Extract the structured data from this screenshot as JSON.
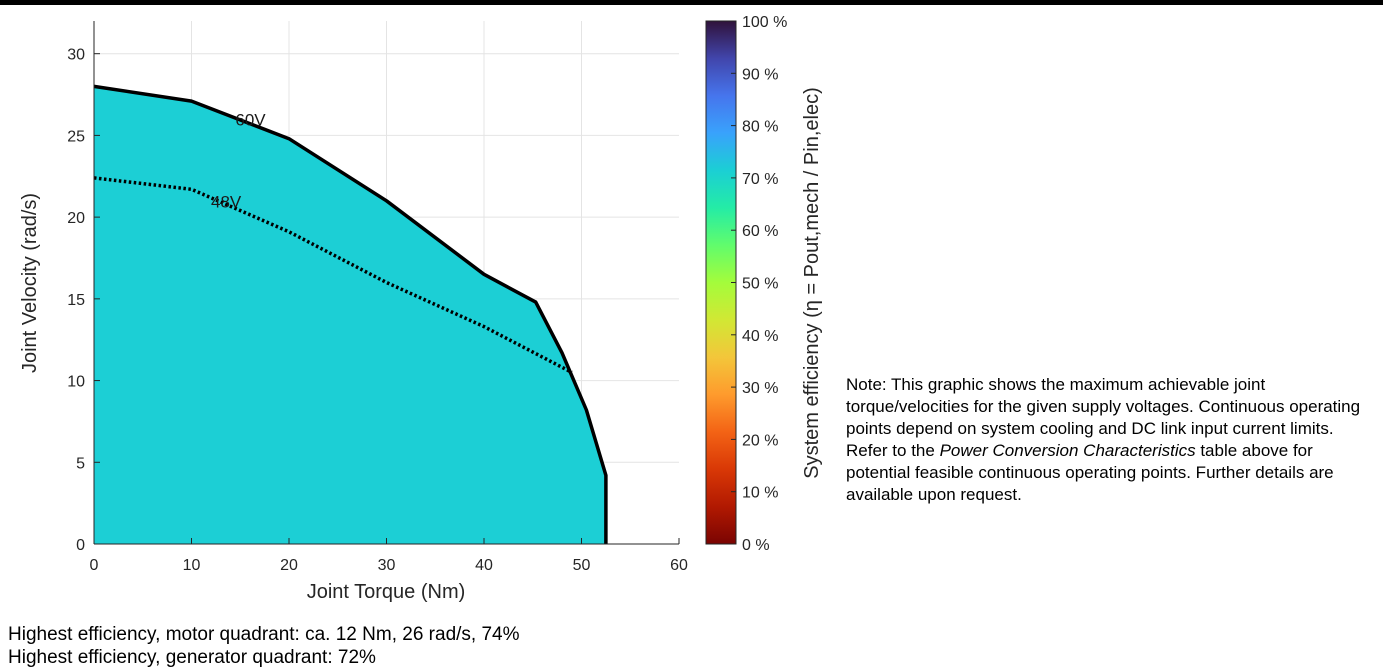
{
  "chart_data": {
    "type": "contourf",
    "xlabel": "Joint Torque (Nm)",
    "ylabel": "Joint Velocity (rad/s)",
    "xlim": [
      0,
      60
    ],
    "ylim": [
      0,
      32
    ],
    "x_ticks": [
      0,
      10,
      20,
      30,
      40,
      50,
      60
    ],
    "y_ticks": [
      0,
      5,
      10,
      15,
      20,
      25,
      30
    ],
    "grid": true,
    "colorbar": {
      "label": "System efficiency (η = Pout,mech / Pin,elec)",
      "range": [
        0,
        100
      ],
      "ticks": [
        "0 %",
        "10 %",
        "20 %",
        "30 %",
        "40 %",
        "50 %",
        "60 %",
        "70 %",
        "80 %",
        "90 %",
        "100 %"
      ],
      "colormap": "turbo"
    },
    "contour_levels": [
      {
        "min": 0,
        "max": 10,
        "color": "#7a0403"
      },
      {
        "min": 10,
        "max": 20,
        "color": "#b61f02"
      },
      {
        "min": 20,
        "max": 30,
        "color": "#e75110"
      },
      {
        "min": 30,
        "max": 40,
        "color": "#fb9b2e"
      },
      {
        "min": 40,
        "max": 50,
        "color": "#dadc39"
      },
      {
        "min": 50,
        "max": 60,
        "color": "#a5fc3c"
      },
      {
        "min": 60,
        "max": 70,
        "color": "#46f884"
      },
      {
        "min": 70,
        "max": 80,
        "color": "#1ccfd5"
      }
    ],
    "voltage_limits": [
      {
        "name": "60V",
        "style": "solid",
        "points": [
          [
            0,
            28.0
          ],
          [
            10,
            27.1
          ],
          [
            20,
            24.8
          ],
          [
            30,
            21.0
          ],
          [
            40,
            16.5
          ],
          [
            45.3,
            14.8
          ],
          [
            48,
            11.7
          ],
          [
            50.5,
            8.2
          ],
          [
            52.5,
            4.2
          ],
          [
            52.5,
            0
          ]
        ]
      },
      {
        "name": "48V",
        "style": "dotted",
        "points": [
          [
            0,
            22.4
          ],
          [
            10,
            21.7
          ],
          [
            20,
            19.1
          ],
          [
            30,
            16.0
          ],
          [
            40,
            13.3
          ],
          [
            49,
            10.5
          ]
        ]
      }
    ],
    "peak_point": {
      "torque": 12,
      "velocity": 26,
      "efficiency": 74
    }
  },
  "note": {
    "before_italic": "Note: This graphic shows the maximum achievable joint torque/velocities for the given supply voltages. Continuous operating points depend on system cooling and DC link input current limits. Refer to the ",
    "italic": "Power Conversion Characteristics",
    "after_italic": " table above for potential feasible continuous operating points. Further details are available upon request."
  },
  "summary": {
    "line1": "Highest efficiency, motor quadrant: ca. 12 Nm, 26 rad/s, 74%",
    "line2": "Highest efficiency, generator quadrant: 72%"
  }
}
